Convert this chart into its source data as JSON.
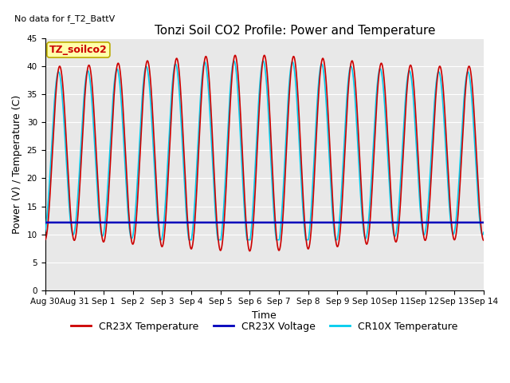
{
  "title": "Tonzi Soil CO2 Profile: Power and Temperature",
  "no_data_text": "No data for f_T2_BattV",
  "xlabel": "Time",
  "ylabel": "Power (V) / Temperature (C)",
  "ylim": [
    0,
    45
  ],
  "yticks": [
    0,
    5,
    10,
    15,
    20,
    25,
    30,
    35,
    40,
    45
  ],
  "x_tick_labels": [
    "Aug 30",
    "Aug 31",
    "Sep 1",
    "Sep 2",
    "Sep 3",
    "Sep 4",
    "Sep 5",
    "Sep 6",
    "Sep 7",
    "Sep 8",
    "Sep 9",
    "Sep 10",
    "Sep 11",
    "Sep 12",
    "Sep 13",
    "Sep 14"
  ],
  "legend_box_label": "TZ_soilco2",
  "legend_box_color": "#FFFFAA",
  "legend_box_edge": "#BBAA00",
  "cr23x_temp_color": "#CC0000",
  "cr23x_voltage_color": "#0000BB",
  "cr10x_temp_color": "#00CCEE",
  "voltage_value": 12.1,
  "plot_bg_color": "#E8E8E8",
  "grid_color": "#FFFFFF",
  "title_fontsize": 11,
  "label_fontsize": 9,
  "tick_fontsize": 7.5,
  "legend_fontsize": 9,
  "no_data_fontsize": 8
}
